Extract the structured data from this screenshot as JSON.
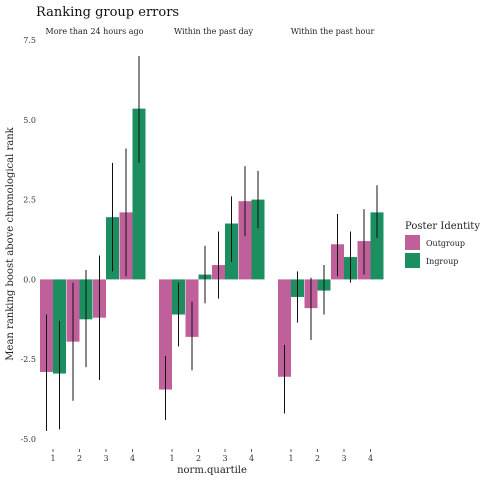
{
  "chart_data": {
    "type": "bar",
    "title": "Ranking group errors",
    "xlabel": "norm.quartile",
    "ylabel": "Mean ranking boost above chronological rank",
    "ylim": [
      -5.0,
      7.5
    ],
    "yticks": [
      "-5.0",
      "-2.5",
      "0.0",
      "2.5",
      "5.0",
      "7.5"
    ],
    "categories": [
      "1",
      "2",
      "3",
      "4"
    ],
    "grid": false,
    "legend": {
      "title": "Poster Identity",
      "placement": "right",
      "entries": [
        "Outgroup",
        "Ingroup"
      ]
    },
    "colors": {
      "Outgroup": "#c0609a",
      "Ingroup": "#1b8f60"
    },
    "panels": [
      {
        "label": "More than 24 hours ago",
        "series": [
          {
            "name": "Outgroup",
            "values": [
              -2.9,
              -1.95,
              -1.2,
              2.1
            ],
            "ci": [
              [
                -4.75,
                -1.1
              ],
              [
                -3.8,
                -0.1
              ],
              [
                -3.15,
                0.75
              ],
              [
                0.1,
                4.1
              ]
            ]
          },
          {
            "name": "Ingroup",
            "values": [
              -2.95,
              -1.25,
              1.95,
              5.35
            ],
            "ci": [
              [
                -4.7,
                -1.3
              ],
              [
                -2.75,
                0.3
              ],
              [
                0.25,
                3.65
              ],
              [
                3.65,
                7.0
              ]
            ]
          }
        ]
      },
      {
        "label": "Within the past day",
        "series": [
          {
            "name": "Outgroup",
            "values": [
              -3.45,
              -1.8,
              0.45,
              2.45
            ],
            "ci": [
              [
                -4.4,
                -2.4
              ],
              [
                -2.85,
                -0.7
              ],
              [
                -0.6,
                1.5
              ],
              [
                1.35,
                3.55
              ]
            ]
          },
          {
            "name": "Ingroup",
            "values": [
              -1.1,
              0.15,
              1.75,
              2.5
            ],
            "ci": [
              [
                -2.1,
                -0.1
              ],
              [
                -0.75,
                1.05
              ],
              [
                0.55,
                2.6
              ],
              [
                1.6,
                3.4
              ]
            ]
          }
        ]
      },
      {
        "label": "Within the past hour",
        "series": [
          {
            "name": "Outgroup",
            "values": [
              -3.05,
              -0.9,
              1.1,
              1.2
            ],
            "ci": [
              [
                -4.2,
                -2.05
              ],
              [
                -1.9,
                0.05
              ],
              [
                0.1,
                2.05
              ],
              [
                0.15,
                2.2
              ]
            ]
          },
          {
            "name": "Ingroup",
            "values": [
              -0.55,
              -0.35,
              0.7,
              2.1
            ],
            "ci": [
              [
                -1.35,
                0.25
              ],
              [
                -1.1,
                0.45
              ],
              [
                -0.1,
                1.5
              ],
              [
                1.3,
                2.95
              ]
            ]
          }
        ]
      }
    ]
  }
}
